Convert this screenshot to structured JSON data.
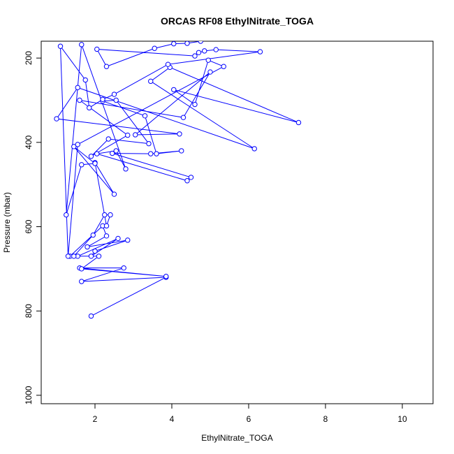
{
  "chart_data": {
    "type": "line",
    "title": "ORCAS RF08 EthylNitrate_TOGA",
    "xlabel": "EthylNitrate_TOGA",
    "ylabel": "Pressure (mbar)",
    "xlim": [
      0.6,
      10.8
    ],
    "ylim": [
      1020,
      160
    ],
    "y_reversed": true,
    "x_ticks": [
      "2",
      "4",
      "6",
      "8",
      "10"
    ],
    "y_ticks": [
      "200",
      "400",
      "600",
      "800",
      "1000"
    ],
    "grid": false,
    "legend": "none",
    "color": "#0000ff",
    "marker": "open-circle",
    "series": [
      {
        "x": [
          1.9,
          3.85,
          1.65,
          2.75,
          1.6,
          3.85,
          1.65,
          2.1,
          1.55,
          2.6,
          1.9,
          2.0,
          2.85,
          1.8,
          2.3,
          2.2,
          1.35,
          1.45,
          1.95,
          2.25,
          2.4,
          2.3,
          2.0,
          2.5,
          1.45,
          2.0,
          1.65,
          1.25,
          1.65,
          2.8,
          2.55,
          2.05,
          4.4,
          4.5,
          2.45,
          3.45,
          4.25,
          3.6,
          3.3,
          2.2,
          2.55,
          3.4,
          2.35,
          1.9,
          2.85,
          1.6,
          4.3,
          5.0,
          3.05,
          4.2,
          1.0,
          1.55,
          6.15,
          3.45,
          3.95,
          7.3,
          4.05,
          4.6,
          4.95,
          5.35,
          1.55,
          1.3,
          1.1,
          1.75,
          1.85,
          2.2,
          2.5,
          3.9,
          6.3,
          5.15,
          4.85,
          4.7,
          4.6,
          2.05,
          2.3,
          3.55,
          4.05,
          4.4,
          4.75
        ],
        "y": [
          812,
          720,
          730,
          698,
          698,
          718,
          700,
          670,
          670,
          628,
          670,
          658,
          632,
          648,
          622,
          598,
          670,
          670,
          620,
          572,
          572,
          598,
          448,
          523,
          410,
          450,
          453,
          572,
          168,
          463,
          420,
          427,
          491,
          483,
          426,
          427,
          420,
          427,
          337,
          302,
          300,
          403,
          392,
          433,
          383,
          300,
          341,
          233,
          382,
          380,
          344,
          270,
          415,
          255,
          222,
          353,
          275,
          310,
          205,
          220,
          405,
          670,
          172,
          252,
          318,
          298,
          286,
          215,
          185,
          180,
          183,
          187,
          195,
          179,
          220,
          177,
          166,
          165,
          160
        ]
      }
    ]
  }
}
